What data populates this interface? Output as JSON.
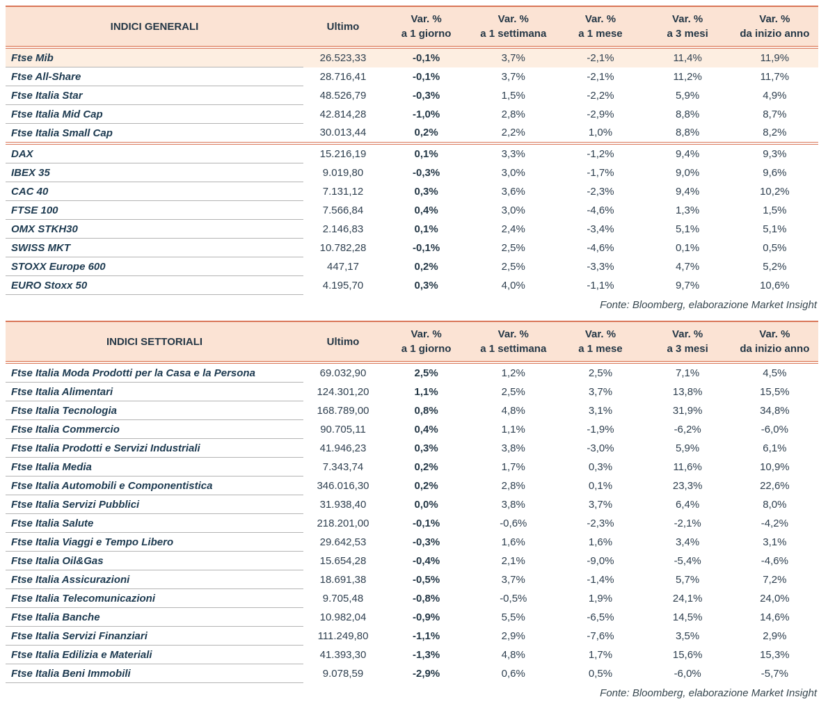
{
  "tables": [
    {
      "title": "INDICI GENERALI",
      "columns": [
        {
          "label": "INDICI GENERALI"
        },
        {
          "label": "Ultimo"
        },
        {
          "label": "Var. %",
          "sub": "a 1 giorno"
        },
        {
          "label": "Var. %",
          "sub": "a 1 settimana"
        },
        {
          "label": "Var. %",
          "sub": "a 1 mese"
        },
        {
          "label": "Var. %",
          "sub": "a 3 mesi"
        },
        {
          "label": "Var. %",
          "sub": "da inizio anno"
        }
      ],
      "groups": [
        {
          "rows": [
            {
              "name": "Ftse Mib",
              "highlight": true,
              "values": [
                "26.523,33",
                "-0,1%",
                "3,7%",
                "-2,1%",
                "11,4%",
                "11,9%"
              ]
            },
            {
              "name": "Ftse All-Share",
              "values": [
                "28.716,41",
                "-0,1%",
                "3,7%",
                "-2,1%",
                "11,2%",
                "11,7%"
              ]
            },
            {
              "name": "Ftse Italia Star",
              "values": [
                "48.526,79",
                "-0,3%",
                "1,5%",
                "-2,2%",
                "5,9%",
                "4,9%"
              ]
            },
            {
              "name": "Ftse Italia Mid Cap",
              "values": [
                "42.814,28",
                "-1,0%",
                "2,8%",
                "-2,9%",
                "8,8%",
                "8,7%"
              ]
            },
            {
              "name": "Ftse Italia Small Cap",
              "values": [
                "30.013,44",
                "0,2%",
                "2,2%",
                "1,0%",
                "8,8%",
                "8,2%"
              ]
            }
          ]
        },
        {
          "rows": [
            {
              "name": "DAX",
              "values": [
                "15.216,19",
                "0,1%",
                "3,3%",
                "-1,2%",
                "9,4%",
                "9,3%"
              ]
            },
            {
              "name": "IBEX 35",
              "values": [
                "9.019,80",
                "-0,3%",
                "3,0%",
                "-1,7%",
                "9,0%",
                "9,6%"
              ]
            },
            {
              "name": "CAC 40",
              "values": [
                "7.131,12",
                "0,3%",
                "3,6%",
                "-2,3%",
                "9,4%",
                "10,2%"
              ]
            },
            {
              "name": "FTSE 100",
              "values": [
                "7.566,84",
                "0,4%",
                "3,0%",
                "-4,6%",
                "1,3%",
                "1,5%"
              ]
            },
            {
              "name": "OMX STKH30",
              "values": [
                "2.146,83",
                "0,1%",
                "2,4%",
                "-3,4%",
                "5,1%",
                "5,1%"
              ]
            },
            {
              "name": "SWISS MKT",
              "values": [
                "10.782,28",
                "-0,1%",
                "2,5%",
                "-4,6%",
                "0,1%",
                "0,5%"
              ]
            },
            {
              "name": "STOXX Europe 600",
              "values": [
                "447,17",
                "0,2%",
                "2,5%",
                "-3,3%",
                "4,7%",
                "5,2%"
              ]
            },
            {
              "name": "EURO Stoxx 50",
              "values": [
                "4.195,70",
                "0,3%",
                "4,0%",
                "-1,1%",
                "9,7%",
                "10,6%"
              ]
            }
          ]
        }
      ],
      "source": "Fonte: Bloomberg, elaborazione Market Insight"
    },
    {
      "title": "INDICI SETTORIALI",
      "columns": [
        {
          "label": "INDICI SETTORIALI"
        },
        {
          "label": "Ultimo"
        },
        {
          "label": "Var. %",
          "sub": "a 1 giorno"
        },
        {
          "label": "Var. %",
          "sub": "a 1 settimana"
        },
        {
          "label": "Var. %",
          "sub": "a 1 mese"
        },
        {
          "label": "Var. %",
          "sub": "a 3 mesi"
        },
        {
          "label": "Var. %",
          "sub": "da inizio anno"
        }
      ],
      "groups": [
        {
          "rows": [
            {
              "name": "Ftse Italia Moda Prodotti per la Casa e la Persona",
              "values": [
                "69.032,90",
                "2,5%",
                "1,2%",
                "2,5%",
                "7,1%",
                "4,5%"
              ]
            },
            {
              "name": "Ftse Italia Alimentari",
              "values": [
                "124.301,20",
                "1,1%",
                "2,5%",
                "3,7%",
                "13,8%",
                "15,5%"
              ]
            },
            {
              "name": "Ftse Italia Tecnologia",
              "values": [
                "168.789,00",
                "0,8%",
                "4,8%",
                "3,1%",
                "31,9%",
                "34,8%"
              ]
            },
            {
              "name": "Ftse Italia Commercio",
              "values": [
                "90.705,11",
                "0,4%",
                "1,1%",
                "-1,9%",
                "-6,2%",
                "-6,0%"
              ]
            },
            {
              "name": "Ftse Italia Prodotti e Servizi Industriali",
              "values": [
                "41.946,23",
                "0,3%",
                "3,8%",
                "-3,0%",
                "5,9%",
                "6,1%"
              ]
            },
            {
              "name": "Ftse Italia Media",
              "values": [
                "7.343,74",
                "0,2%",
                "1,7%",
                "0,3%",
                "11,6%",
                "10,9%"
              ]
            },
            {
              "name": "Ftse Italia Automobili e Componentistica",
              "values": [
                "346.016,30",
                "0,2%",
                "2,8%",
                "0,1%",
                "23,3%",
                "22,6%"
              ]
            },
            {
              "name": "Ftse Italia Servizi Pubblici",
              "values": [
                "31.938,40",
                "0,0%",
                "3,8%",
                "3,7%",
                "6,4%",
                "8,0%"
              ]
            },
            {
              "name": "Ftse Italia Salute",
              "values": [
                "218.201,00",
                "-0,1%",
                "-0,6%",
                "-2,3%",
                "-2,1%",
                "-4,2%"
              ]
            },
            {
              "name": "Ftse Italia Viaggi e Tempo Libero",
              "values": [
                "29.642,53",
                "-0,3%",
                "1,6%",
                "1,6%",
                "3,4%",
                "3,1%"
              ]
            },
            {
              "name": "Ftse Italia Oil&Gas",
              "values": [
                "15.654,28",
                "-0,4%",
                "2,1%",
                "-9,0%",
                "-5,4%",
                "-4,6%"
              ]
            },
            {
              "name": "Ftse Italia Assicurazioni",
              "values": [
                "18.691,38",
                "-0,5%",
                "3,7%",
                "-1,4%",
                "5,7%",
                "7,2%"
              ]
            },
            {
              "name": "Ftse Italia Telecomunicazioni",
              "values": [
                "9.705,48",
                "-0,8%",
                "-0,5%",
                "1,9%",
                "24,1%",
                "24,0%"
              ]
            },
            {
              "name": "Ftse Italia Banche",
              "values": [
                "10.982,04",
                "-0,9%",
                "5,5%",
                "-6,5%",
                "14,5%",
                "14,6%"
              ]
            },
            {
              "name": "Ftse Italia Servizi Finanziari",
              "values": [
                "111.249,80",
                "-1,1%",
                "2,9%",
                "-7,6%",
                "3,5%",
                "2,9%"
              ]
            },
            {
              "name": "Ftse Italia Edilizia e Materiali",
              "values": [
                "41.393,30",
                "-1,3%",
                "4,8%",
                "1,7%",
                "15,6%",
                "15,3%"
              ]
            },
            {
              "name": "Ftse Italia Beni Immobili",
              "values": [
                "9.078,59",
                "-2,9%",
                "0,6%",
                "0,5%",
                "-6,0%",
                "-5,7%"
              ]
            }
          ]
        }
      ],
      "source": "Fonte: Bloomberg, elaborazione Market Insight"
    }
  ]
}
